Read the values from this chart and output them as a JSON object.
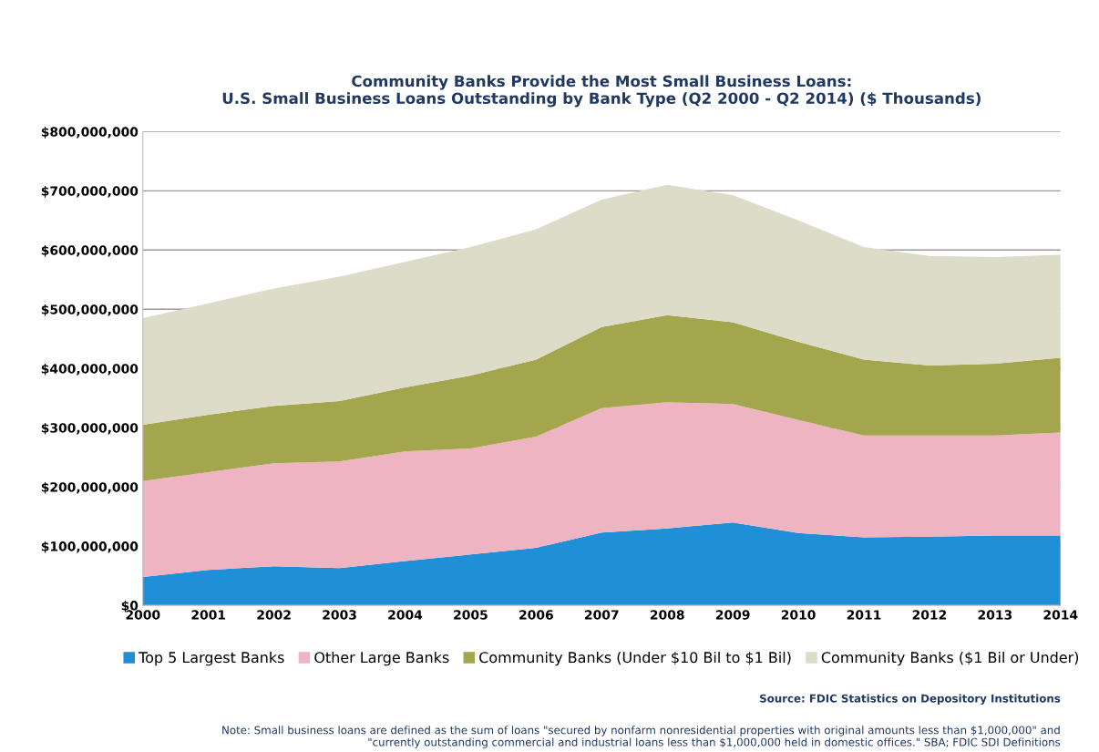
{
  "chart_data": {
    "type": "area",
    "stacked": true,
    "title": "Community Banks Provide the Most Small Business Loans:\nU.S. Small Business Loans Outstanding by Bank Type (Q2 2000 - Q2 2014) ($ Thousands)",
    "x": [
      2000,
      2001,
      2002,
      2003,
      2004,
      2005,
      2006,
      2007,
      2008,
      2009,
      2010,
      2011,
      2012,
      2013,
      2014
    ],
    "xlim": [
      2000,
      2014
    ],
    "xticks": [
      2000,
      2001,
      2002,
      2003,
      2004,
      2005,
      2006,
      2007,
      2008,
      2009,
      2010,
      2011,
      2012,
      2013,
      2014
    ],
    "ylim": [
      0,
      800000000
    ],
    "yticks": [
      {
        "value": 0,
        "label": "$0"
      },
      {
        "value": 100000000,
        "label": "$100,000,000"
      },
      {
        "value": 200000000,
        "label": "$200,000,000"
      },
      {
        "value": 300000000,
        "label": "$300,000,000"
      },
      {
        "value": 400000000,
        "label": "$400,000,000"
      },
      {
        "value": 500000000,
        "label": "$500,000,000"
      },
      {
        "value": 600000000,
        "label": "$600,000,000"
      },
      {
        "value": 700000000,
        "label": "$700,000,000"
      },
      {
        "value": 800000000,
        "label": "$800,000,000"
      }
    ],
    "series": [
      {
        "name": "Top 5 Largest Banks",
        "color": "#1f8fd8",
        "values": [
          48000000,
          60000000,
          66000000,
          63000000,
          75000000,
          86000000,
          97000000,
          123000000,
          130000000,
          140000000,
          122000000,
          115000000,
          116000000,
          118000000,
          118000000
        ]
      },
      {
        "name": "Other Large Banks",
        "color": "#eeb4c2",
        "values": [
          162000000,
          165000000,
          174000000,
          180000000,
          185000000,
          179000000,
          188000000,
          210000000,
          213000000,
          200000000,
          191000000,
          172000000,
          171000000,
          169000000,
          174000000
        ]
      },
      {
        "name": "Community Banks (Under $10 Bil to $1 Bil)",
        "color": "#a3a64c",
        "values": [
          95000000,
          97000000,
          97000000,
          102000000,
          108000000,
          123000000,
          130000000,
          137000000,
          147000000,
          138000000,
          132000000,
          128000000,
          118000000,
          121000000,
          126000000
        ]
      },
      {
        "name": "Community Banks ($1 Bil or Under)",
        "color": "#dcdcc8",
        "values": [
          180000000,
          188000000,
          198000000,
          210000000,
          212000000,
          217000000,
          220000000,
          215000000,
          220000000,
          215000000,
          205000000,
          190000000,
          185000000,
          180000000,
          174000000
        ]
      }
    ],
    "grid": "y",
    "legend": "bottom",
    "annotations": [
      "Source: FDIC Statistics on Depository Institutions",
      "Note: Small business loans are defined as the sum of loans \"secured by nonfarm nonresidential properties with original amounts less than $1,000,000\" and\n\"currently outstanding commercial and industrial loans less than $1,000,000 held in domestic offices.\" SBA; FDIC SDI Definitions"
    ]
  }
}
